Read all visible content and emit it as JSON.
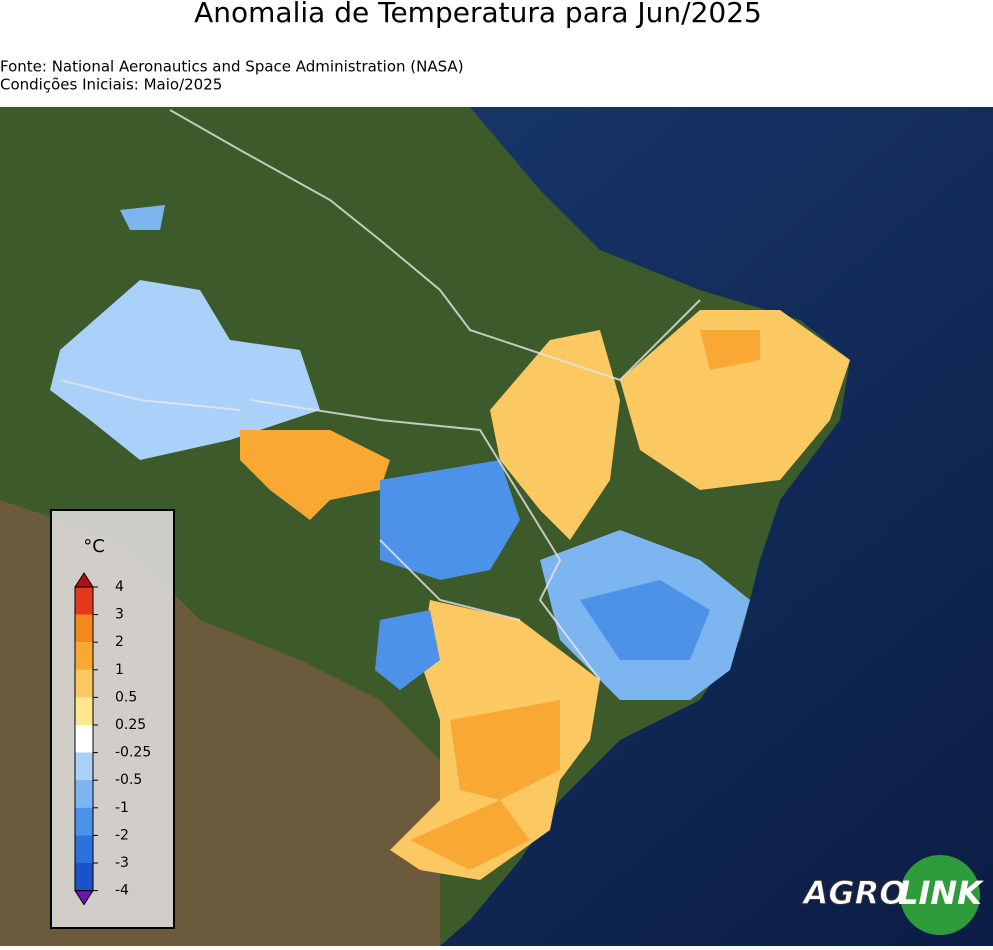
{
  "header": {
    "title": "Anomalia de Temperatura para Jun/2025",
    "source": "Fonte: National Aeronautics and Space Administration (NASA)",
    "initial_conditions": "Condições Iniciais: Maio/2025"
  },
  "legend": {
    "unit": "°C",
    "ticks": [
      4,
      3,
      2,
      1,
      0.5,
      0.25,
      -0.25,
      -0.5,
      -1,
      -2,
      -3,
      -4
    ],
    "colors": [
      "#e23a1a",
      "#f6891c",
      "#f9a833",
      "#fcc862",
      "#fde890",
      "#ffffff",
      "#a9d1f9",
      "#7db5f1",
      "#4c92e9",
      "#2d71dc",
      "#1c52c9"
    ],
    "over_color": "#b01010",
    "under_color": "#6a1aa8"
  },
  "logo": {
    "part1": "AGRO",
    "part2": "LINK"
  }
}
